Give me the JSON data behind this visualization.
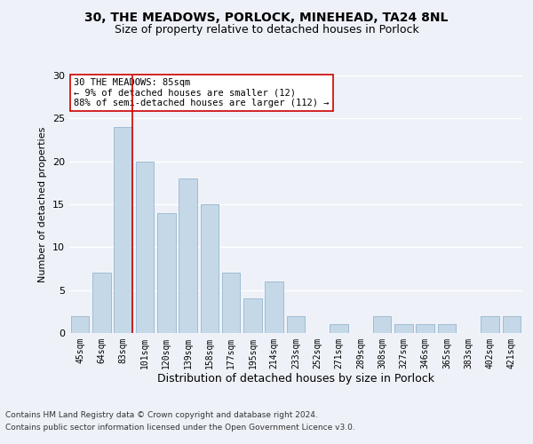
{
  "title1": "30, THE MEADOWS, PORLOCK, MINEHEAD, TA24 8NL",
  "title2": "Size of property relative to detached houses in Porlock",
  "xlabel": "Distribution of detached houses by size in Porlock",
  "ylabel": "Number of detached properties",
  "categories": [
    "45sqm",
    "64sqm",
    "83sqm",
    "101sqm",
    "120sqm",
    "139sqm",
    "158sqm",
    "177sqm",
    "195sqm",
    "214sqm",
    "233sqm",
    "252sqm",
    "271sqm",
    "289sqm",
    "308sqm",
    "327sqm",
    "346sqm",
    "365sqm",
    "383sqm",
    "402sqm",
    "421sqm"
  ],
  "values": [
    2,
    7,
    24,
    20,
    14,
    18,
    15,
    7,
    4,
    6,
    2,
    0,
    1,
    0,
    2,
    1,
    1,
    1,
    0,
    2,
    2
  ],
  "bar_color": "#c5d8e8",
  "bar_edge_color": "#a0bcd4",
  "vline_idx": 2,
  "vline_color": "#cc0000",
  "annotation_text": "30 THE MEADOWS: 85sqm\n← 9% of detached houses are smaller (12)\n88% of semi-detached houses are larger (112) →",
  "annotation_box_color": "#ffffff",
  "annotation_box_edge": "#cc0000",
  "ylim": [
    0,
    30
  ],
  "yticks": [
    0,
    5,
    10,
    15,
    20,
    25,
    30
  ],
  "footer1": "Contains HM Land Registry data © Crown copyright and database right 2024.",
  "footer2": "Contains public sector information licensed under the Open Government Licence v3.0.",
  "bg_color": "#eef2f8",
  "grid_color": "#ffffff",
  "title1_fontsize": 10,
  "title2_fontsize": 9,
  "ylabel_fontsize": 8,
  "xlabel_fontsize": 9,
  "tick_fontsize": 7,
  "footer_fontsize": 6.5,
  "ann_fontsize": 7.5
}
